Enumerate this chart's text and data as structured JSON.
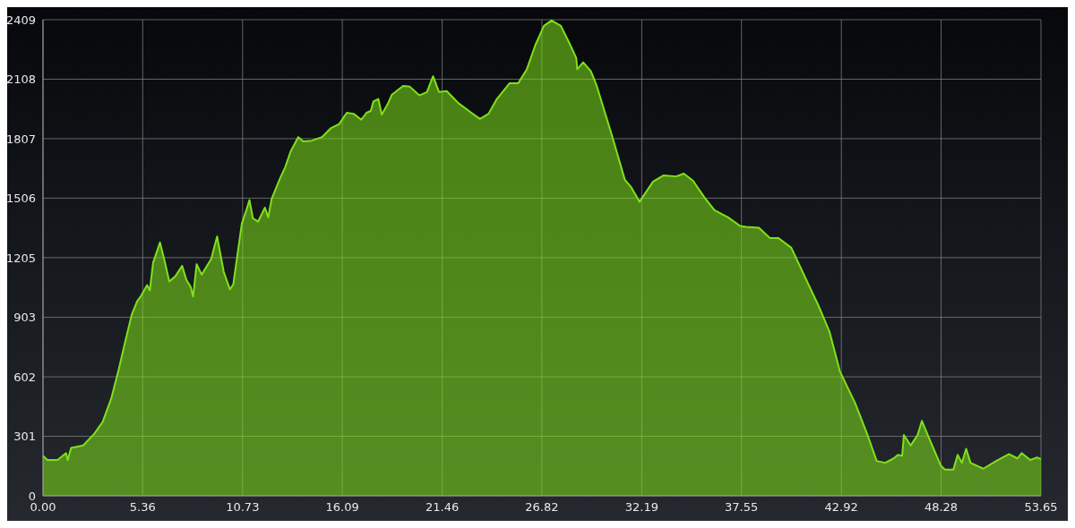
{
  "chart_data": {
    "type": "area",
    "x": [
      0,
      0.23,
      0.78,
      1.24,
      1.33,
      1.51,
      2.16,
      2.75,
      3.21,
      3.67,
      4.08,
      4.45,
      4.77,
      5.05,
      5.28,
      5.6,
      5.74,
      5.92,
      6.29,
      6.56,
      6.79,
      7.11,
      7.48,
      7.71,
      7.94,
      8.07,
      8.26,
      8.53,
      9.04,
      9.36,
      9.72,
      10.05,
      10.23,
      10.46,
      10.69,
      10.96,
      11.1,
      11.28,
      11.56,
      11.93,
      12.11,
      12.29,
      12.71,
      13.03,
      13.3,
      13.72,
      13.99,
      14.45,
      15,
      15.46,
      15.92,
      16.33,
      16.7,
      17.11,
      17.39,
      17.62,
      17.76,
      18.03,
      18.21,
      18.53,
      18.76,
      19.36,
      19.72,
      20.23,
      20.64,
      20.97,
      21.29,
      21.7,
      22.34,
      23.03,
      23.49,
      23.95,
      24.4,
      25.09,
      25.55,
      26.01,
      26.47,
      26.93,
      27.34,
      27.84,
      28.3,
      28.67,
      28.72,
      29.04,
      29.45,
      29.77,
      30.6,
      31.28,
      31.61,
      32.07,
      32.8,
      33.35,
      34.04,
      34.45,
      34.95,
      35.55,
      36.1,
      36.83,
      37.48,
      37.8,
      38.49,
      39.08,
      39.54,
      40.23,
      41.15,
      41.7,
      42.29,
      42.84,
      43.67,
      44.36,
      44.82,
      45.28,
      45.73,
      45.96,
      46.19,
      46.28,
      46.65,
      47.02,
      47.25,
      47.8,
      48.26,
      48.49,
      48.94,
      49.17,
      49.4,
      49.63,
      49.86,
      50.55,
      51.24,
      51.93,
      52.39,
      52.61,
      53.08,
      53.44,
      53.65
    ],
    "series": [
      {
        "color": "#7fe11a",
        "values": [
          203,
          181,
          181,
          216,
          181,
          242,
          255,
          313,
          374,
          493,
          643,
          793,
          916,
          982,
          1013,
          1066,
          1039,
          1180,
          1282,
          1180,
          1084,
          1110,
          1163,
          1092,
          1057,
          1008,
          1172,
          1119,
          1198,
          1312,
          1132,
          1044,
          1070,
          1224,
          1378,
          1453,
          1497,
          1405,
          1387,
          1458,
          1409,
          1502,
          1599,
          1665,
          1740,
          1815,
          1793,
          1797,
          1815,
          1859,
          1881,
          1938,
          1933,
          1903,
          1938,
          1947,
          1995,
          2008,
          1929,
          1982,
          2030,
          2074,
          2070,
          2026,
          2043,
          2123,
          2043,
          2048,
          1986,
          1938,
          1907,
          1933,
          2008,
          2088,
          2088,
          2158,
          2281,
          2378,
          2405,
          2378,
          2290,
          2215,
          2158,
          2193,
          2149,
          2074,
          1819,
          1599,
          1563,
          1488,
          1590,
          1621,
          1616,
          1630,
          1594,
          1511,
          1445,
          1409,
          1365,
          1361,
          1356,
          1304,
          1304,
          1255,
          1070,
          960,
          828,
          630,
          467,
          299,
          176,
          167,
          189,
          207,
          203,
          308,
          255,
          308,
          379,
          255,
          154,
          132,
          132,
          207,
          167,
          238,
          167,
          137,
          176,
          211,
          189,
          216,
          181,
          194,
          185
        ]
      }
    ],
    "xlim": [
      0,
      53.65
    ],
    "xticks": [
      {
        "value": 0,
        "label": "0.00"
      },
      5.36,
      10.73,
      16.09,
      21.46,
      26.82,
      32.19,
      37.55,
      42.92,
      48.28,
      53.65
    ],
    "ylim": [
      0,
      2409
    ],
    "yticks": [
      0,
      301,
      602,
      903,
      1205,
      1506,
      1807,
      2108,
      2409
    ],
    "grid": true
  }
}
